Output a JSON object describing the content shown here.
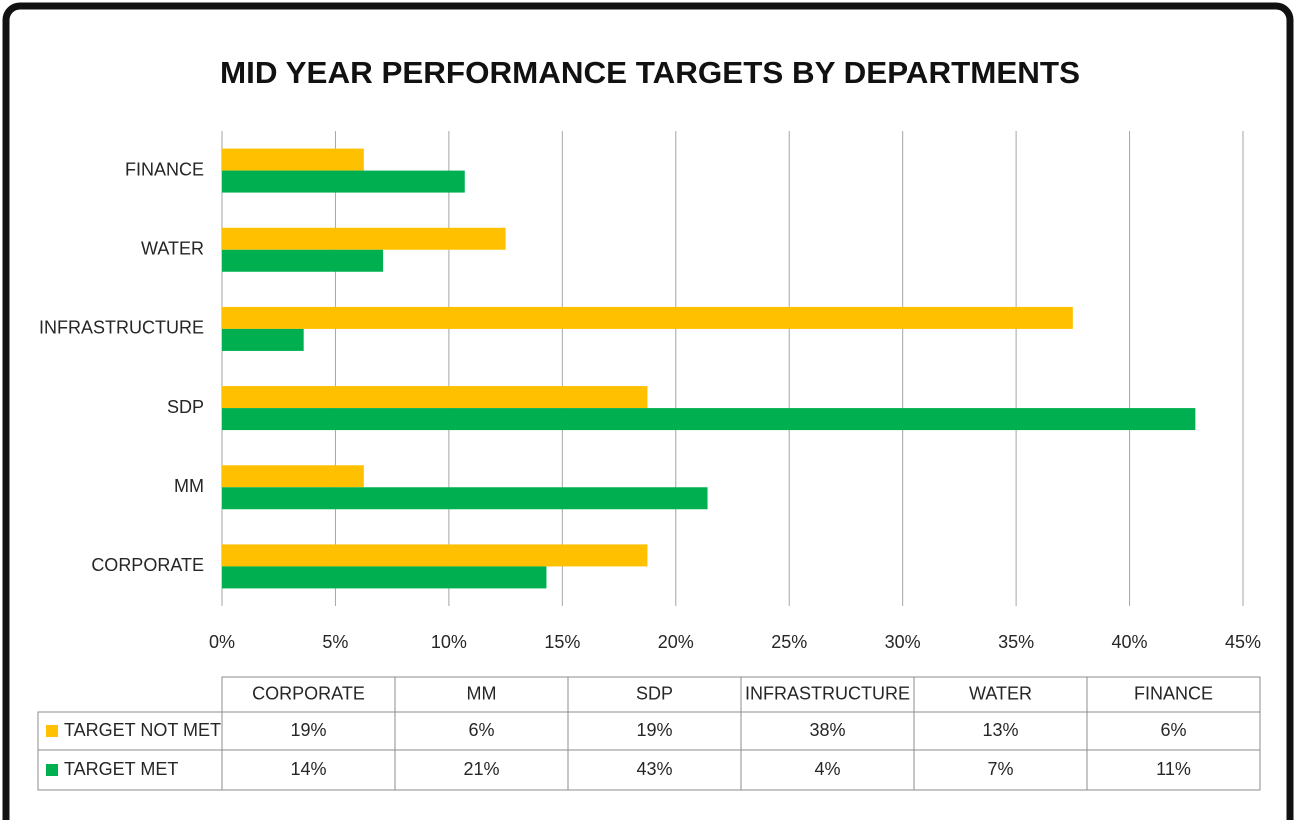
{
  "chart_data": {
    "type": "hbar",
    "title": "MID YEAR PERFORMANCE TARGETS BY DEPARTMENTS",
    "categories": [
      "CORPORATE",
      "MM",
      "SDP",
      "INFRASTRUCTURE",
      "WATER",
      "FINANCE"
    ],
    "series": [
      {
        "name": "TARGET NOT MET",
        "color": "#ffc000",
        "values": [
          18.75,
          6.25,
          18.75,
          37.5,
          12.5,
          6.25
        ],
        "value_labels": [
          "19%",
          "6%",
          "19%",
          "38%",
          "13%",
          "6%"
        ]
      },
      {
        "name": "TARGET MET",
        "color": "#00b050",
        "values": [
          14.3,
          21.4,
          42.9,
          3.6,
          7.1,
          10.7
        ],
        "value_labels": [
          "14%",
          "21%",
          "43%",
          "4%",
          "7%",
          "11%"
        ]
      }
    ],
    "xlim": [
      0,
      45
    ],
    "xticks": [
      {
        "value": 0,
        "label": "0%"
      },
      {
        "value": 5,
        "label": "5%"
      },
      {
        "value": 10,
        "label": "10%"
      },
      {
        "value": 15,
        "label": "15%"
      },
      {
        "value": 20,
        "label": "20%"
      },
      {
        "value": 25,
        "label": "25%"
      },
      {
        "value": 30,
        "label": "30%"
      },
      {
        "value": 35,
        "label": "35%"
      },
      {
        "value": 40,
        "label": "40%"
      },
      {
        "value": 45,
        "label": "45%"
      }
    ],
    "grid": true
  }
}
